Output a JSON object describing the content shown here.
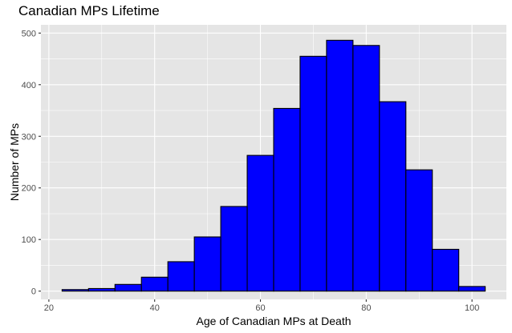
{
  "chart_data": {
    "type": "histogram",
    "title": "Canadian MPs Lifetime",
    "xlabel": "Age of Canadian MPs at Death",
    "ylabel": "Number of MPs",
    "bin_width": 5,
    "bins": [
      {
        "from": 22.5,
        "to": 27.5,
        "count": 3
      },
      {
        "from": 27.5,
        "to": 32.5,
        "count": 5
      },
      {
        "from": 32.5,
        "to": 37.5,
        "count": 13
      },
      {
        "from": 37.5,
        "to": 42.5,
        "count": 27
      },
      {
        "from": 42.5,
        "to": 47.5,
        "count": 57
      },
      {
        "from": 47.5,
        "to": 52.5,
        "count": 105
      },
      {
        "from": 52.5,
        "to": 57.5,
        "count": 164
      },
      {
        "from": 57.5,
        "to": 62.5,
        "count": 263
      },
      {
        "from": 62.5,
        "to": 67.5,
        "count": 354
      },
      {
        "from": 67.5,
        "to": 72.5,
        "count": 455
      },
      {
        "from": 72.5,
        "to": 77.5,
        "count": 486
      },
      {
        "from": 77.5,
        "to": 82.5,
        "count": 476
      },
      {
        "from": 82.5,
        "to": 87.5,
        "count": 367
      },
      {
        "from": 87.5,
        "to": 92.5,
        "count": 235
      },
      {
        "from": 92.5,
        "to": 97.5,
        "count": 81
      },
      {
        "from": 97.5,
        "to": 102.5,
        "count": 9
      }
    ],
    "xlim": [
      18.5,
      106.5
    ],
    "ylim": [
      -16,
      516
    ],
    "x_ticks": [
      20,
      40,
      60,
      80,
      100
    ],
    "y_ticks": [
      0,
      100,
      200,
      300,
      400,
      500
    ],
    "grid": true,
    "colors": {
      "panel_background": "#e5e5e5",
      "grid_major": "#ffffff",
      "bar_fill": "#0000ff",
      "bar_outline": "#000000",
      "tick_text": "#4d4d4d"
    }
  }
}
